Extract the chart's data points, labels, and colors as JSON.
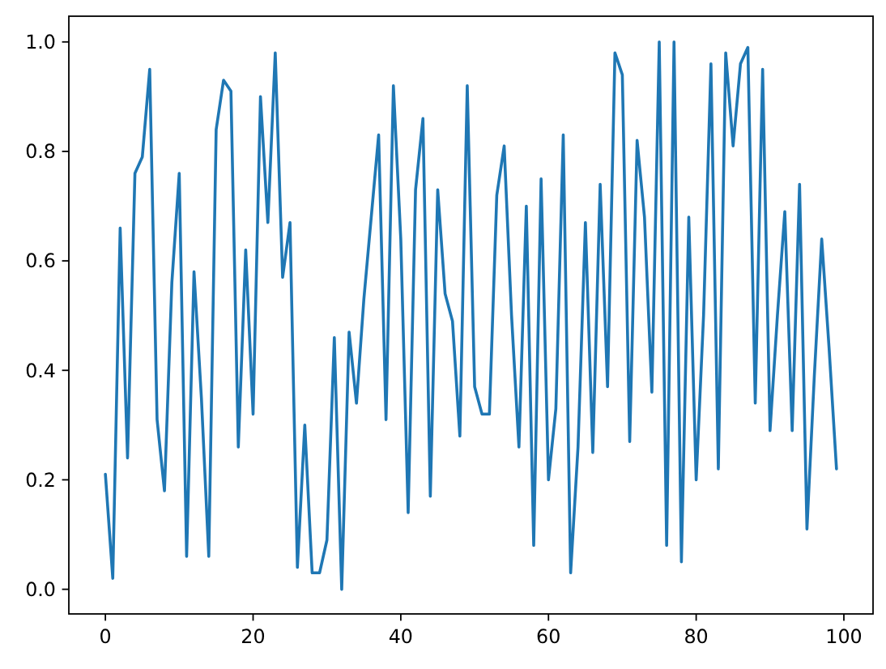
{
  "chart_data": {
    "type": "line",
    "x": [
      0,
      1,
      2,
      3,
      4,
      5,
      6,
      7,
      8,
      9,
      10,
      11,
      12,
      13,
      14,
      15,
      16,
      17,
      18,
      19,
      20,
      21,
      22,
      23,
      24,
      25,
      26,
      27,
      28,
      29,
      30,
      31,
      32,
      33,
      34,
      35,
      36,
      37,
      38,
      39,
      40,
      41,
      42,
      43,
      44,
      45,
      46,
      47,
      48,
      49,
      50,
      51,
      52,
      53,
      54,
      55,
      56,
      57,
      58,
      59,
      60,
      61,
      62,
      63,
      64,
      65,
      66,
      67,
      68,
      69,
      70,
      71,
      72,
      73,
      74,
      75,
      76,
      77,
      78,
      79,
      80,
      81,
      82,
      83,
      84,
      85,
      86,
      87,
      88,
      89,
      90,
      91,
      92,
      93,
      94,
      95,
      96,
      97,
      98,
      99
    ],
    "values": [
      0.21,
      0.02,
      0.66,
      0.24,
      0.76,
      0.79,
      0.95,
      0.31,
      0.18,
      0.56,
      0.76,
      0.06,
      0.58,
      0.35,
      0.06,
      0.84,
      0.93,
      0.91,
      0.26,
      0.62,
      0.32,
      0.9,
      0.67,
      0.98,
      0.57,
      0.67,
      0.04,
      0.3,
      0.03,
      0.03,
      0.09,
      0.46,
      0.0,
      0.47,
      0.34,
      0.53,
      0.68,
      0.83,
      0.31,
      0.92,
      0.64,
      0.14,
      0.73,
      0.86,
      0.17,
      0.73,
      0.54,
      0.49,
      0.28,
      0.92,
      0.37,
      0.32,
      0.32,
      0.72,
      0.81,
      0.5,
      0.26,
      0.7,
      0.08,
      0.75,
      0.2,
      0.33,
      0.83,
      0.03,
      0.26,
      0.67,
      0.25,
      0.74,
      0.37,
      0.98,
      0.94,
      0.27,
      0.82,
      0.68,
      0.36,
      1.0,
      0.08,
      1.0,
      0.05,
      0.68,
      0.2,
      0.5,
      0.96,
      0.22,
      0.98,
      0.81,
      0.96,
      0.99,
      0.34,
      0.95,
      0.29,
      0.5,
      0.69,
      0.29,
      0.74,
      0.11,
      0.39,
      0.64,
      0.44,
      0.22
    ],
    "color": "#1f77b4",
    "line_style": "solid",
    "xlim": [
      -4.95,
      103.95
    ],
    "xticks": [
      0,
      20,
      40,
      60,
      80,
      100
    ],
    "ylim": [
      -0.045,
      1.047
    ],
    "yticks": [
      {
        "value": 0,
        "label": "0.0"
      },
      {
        "value": 0.2,
        "label": "0.2"
      },
      {
        "value": 0.4,
        "label": "0.4"
      },
      {
        "value": 0.6,
        "label": "0.6"
      },
      {
        "value": 0.8,
        "label": "0.8"
      },
      {
        "value": 1.0,
        "label": "1.0"
      }
    ],
    "grid": false
  }
}
